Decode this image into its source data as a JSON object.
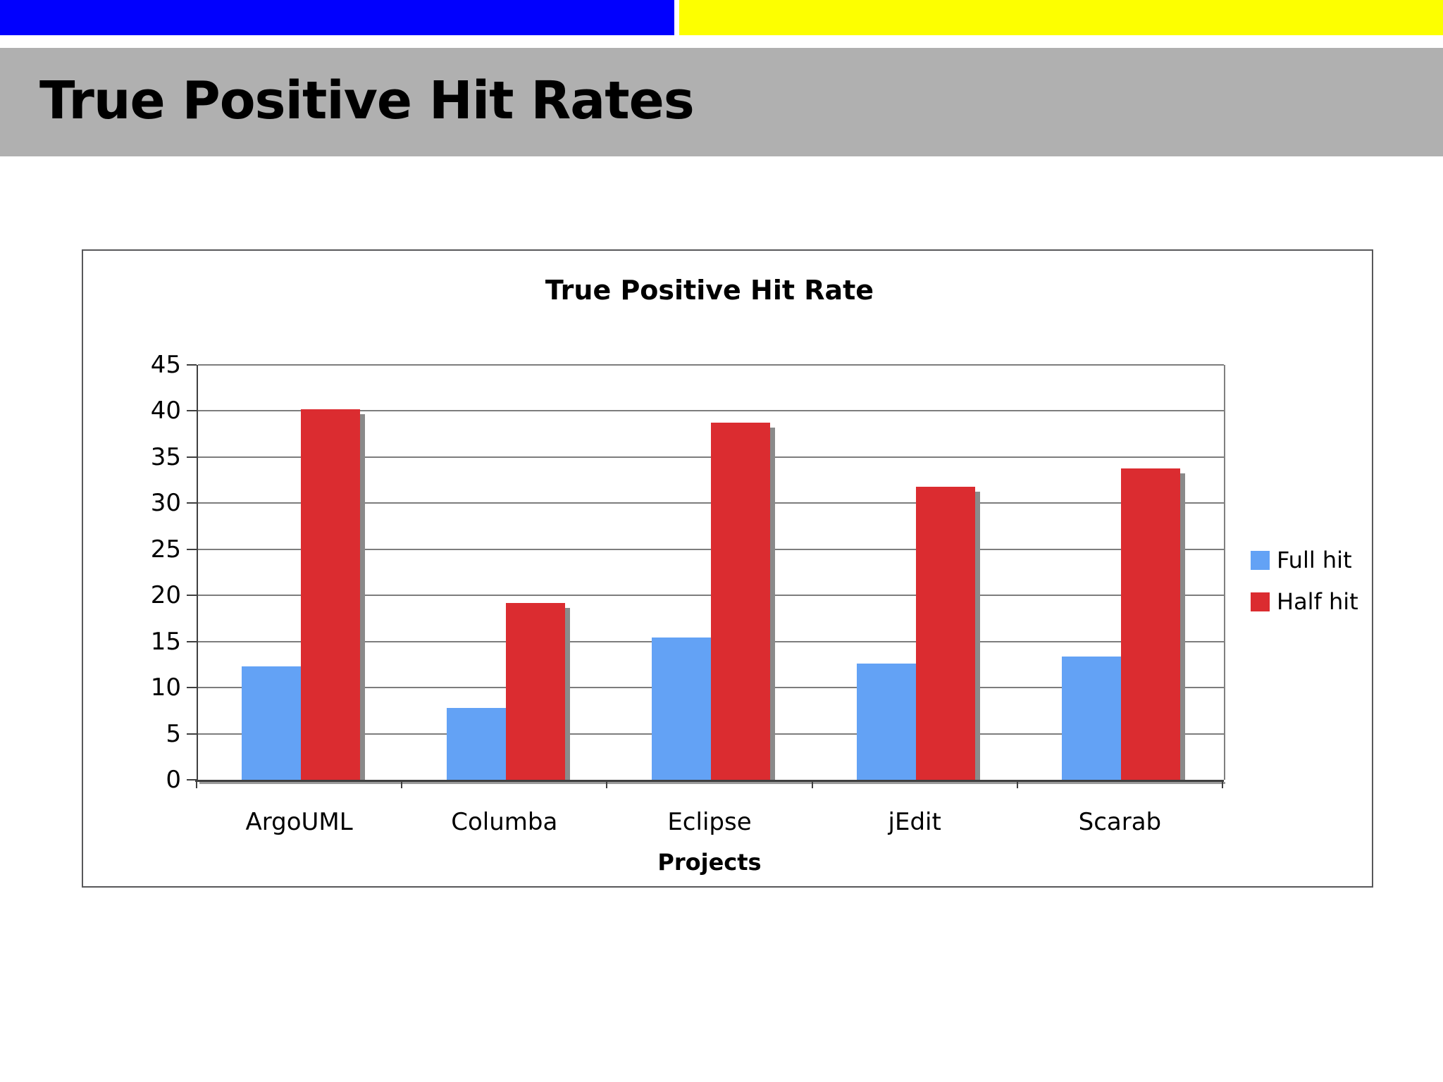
{
  "banner": {
    "blue_color": "#0100fe",
    "yellow_color": "#fdff00"
  },
  "header": {
    "title": "True Positive Hit Rates",
    "bg_color": "#b0b0b0"
  },
  "chart_data": {
    "type": "bar",
    "title": "True Positive Hit Rate",
    "categories": [
      "ArgoUML",
      "Columba",
      "Eclipse",
      "jEdit",
      "Scarab"
    ],
    "series": [
      {
        "name": "Full hit",
        "color": "#63a2f5",
        "values": [
          12.3,
          7.8,
          15.4,
          12.6,
          13.4
        ]
      },
      {
        "name": "Half hit",
        "color": "#db2c30",
        "values": [
          40.2,
          19.2,
          38.7,
          31.8,
          33.8
        ]
      }
    ],
    "xlabel": "Projects",
    "ylabel": "",
    "ylim": [
      0,
      45
    ],
    "ytick_step": 5,
    "ytick_labels": [
      "45",
      "40",
      "35",
      "30",
      "25",
      "20",
      "15",
      "10",
      "5",
      "0"
    ],
    "grid": true,
    "legend_position": "right",
    "bar_shadow_color": "#8a8a8a"
  }
}
